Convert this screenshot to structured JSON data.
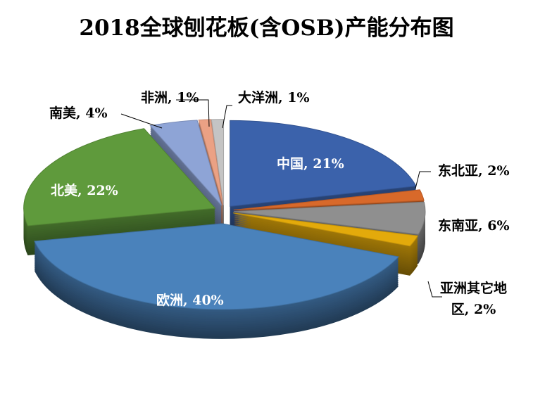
{
  "chart_data": {
    "type": "pie",
    "title": "2018全球刨花板(含OSB)产能分布图",
    "categories": [
      "中国",
      "东北亚",
      "东南亚",
      "亚洲其它地区",
      "欧洲",
      "北美",
      "南美",
      "非洲",
      "大洋洲"
    ],
    "values": [
      21,
      2,
      6,
      2,
      40,
      22,
      4,
      1,
      1
    ],
    "labels": [
      "中国, 21%",
      "东北亚, 2%",
      "东南亚, 6%",
      "亚洲其它地区, 2%",
      "欧洲, 40%",
      "北美, 22%",
      "南美, 4%",
      "非洲, 1%",
      "大洋洲, 1%"
    ],
    "colors": [
      "#3b62ab",
      "#d8692a",
      "#8f8f8f",
      "#e3aa0b",
      "#4a82bb",
      "#5f9a3c",
      "#8ea4d6",
      "#eba184",
      "#c4c4c4"
    ],
    "style": "3d-exploded"
  }
}
